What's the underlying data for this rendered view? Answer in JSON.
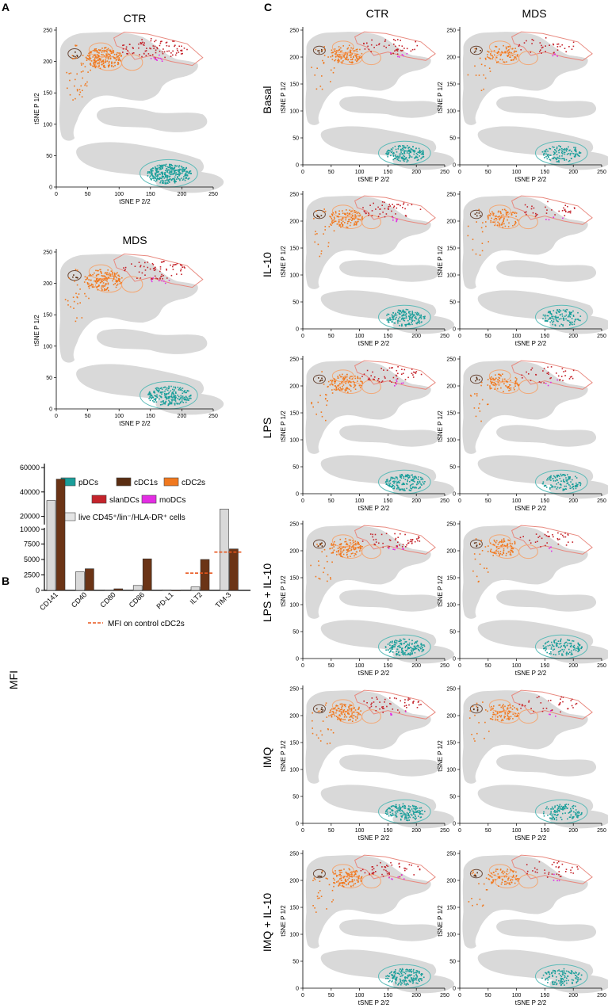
{
  "panel_letters": {
    "a": "A",
    "b": "B",
    "c": "C"
  },
  "colors": {
    "pdc": "#1a9e9a",
    "cdc1": "#5a2d12",
    "cdc2": "#f0781e",
    "slan": "#c4232b",
    "modc": "#e32de3",
    "live": "#d8d8d8",
    "gate_orange": "#f3a774",
    "gate_red": "#e8897f",
    "gate_teal": "#5cbbb8",
    "gate_brown": "#6b4a3a",
    "bar_ctr": "#d9d9d9",
    "bar_mds": "#6b3416",
    "mfi_line": "#e8561d"
  },
  "tsne": {
    "xlabel": "tSNE P 2/2",
    "ylabel": "tSNE P 1/2",
    "ticks": [
      "0",
      "50",
      "100",
      "150",
      "200",
      "250"
    ]
  },
  "panel_a": {
    "titles": [
      "CTR",
      "MDS"
    ]
  },
  "legend": {
    "items": [
      "pDCs",
      "cDC1s",
      "cDC2s",
      "slanDCs",
      "moDCs"
    ],
    "live": "live CD45⁺/lin⁻/HLA-DR⁺ cells"
  },
  "panel_c": {
    "columns": [
      "CTR",
      "MDS"
    ],
    "rows": [
      "Basal",
      "IL-10",
      "LPS",
      "LPS + IL-10",
      "IMQ",
      "IMQ + IL-10"
    ]
  },
  "chart_data": {
    "type": "bar",
    "ylabel": "MFI",
    "categories": [
      "CD141",
      "CD40",
      "CD80",
      "CD86",
      "PD-L1",
      "ILT2",
      "TIM-3"
    ],
    "series": [
      {
        "name": "CTR",
        "values": [
          33000,
          3000,
          60,
          800,
          80,
          550,
          26000
        ]
      },
      {
        "name": "MDS",
        "values": [
          50500,
          3500,
          250,
          5100,
          30,
          5000,
          6700
        ]
      }
    ],
    "axis_break": {
      "lower_range": [
        0,
        10000
      ],
      "upper_range": [
        10000,
        60000
      ]
    },
    "lower_ticks": [
      0,
      2500,
      5000,
      7500,
      10000
    ],
    "upper_ticks": [
      20000,
      40000,
      60000
    ],
    "reference_lines": [
      {
        "category": "ILT2",
        "value": 2800
      },
      {
        "category": "TIM-3",
        "value": 6200
      }
    ],
    "reference_label": "MFI on control cDC2s"
  }
}
